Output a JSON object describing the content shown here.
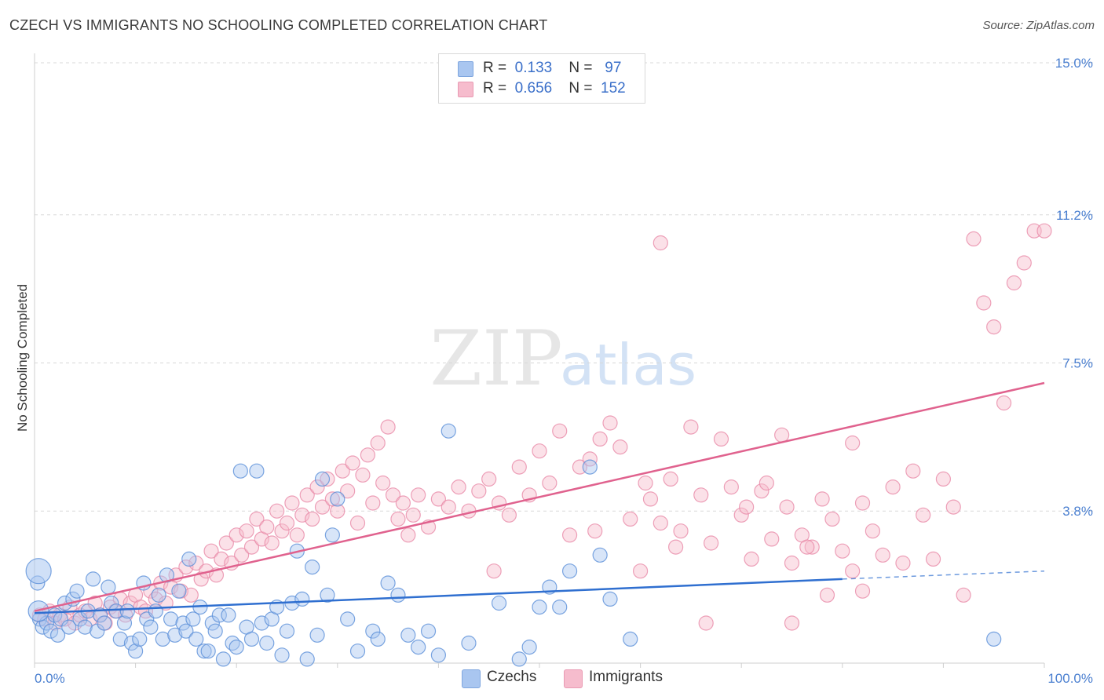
{
  "title": "CZECH VS IMMIGRANTS NO SCHOOLING COMPLETED CORRELATION CHART",
  "source": "Source: ZipAtlas.com",
  "watermark": {
    "zip": "ZIP",
    "atlas": "atlas"
  },
  "colors": {
    "blue": "#5a8fd8",
    "blue_fill": "#a9c6f0",
    "blue_line": "#2f6fd0",
    "pink": "#e88aa8",
    "pink_fill": "#f6bccd",
    "pink_line": "#e0628e",
    "grid": "#d8d8d8",
    "accent_text": "#4a7fd0"
  },
  "legend": {
    "rows": [
      {
        "r_label": "R =",
        "r_value": "0.133",
        "n_label": "N =",
        "n_value": "97",
        "color": "#a9c6f0"
      },
      {
        "r_label": "R =",
        "r_value": "0.656",
        "n_label": "N =",
        "n_value": "152",
        "color": "#f6bccd"
      }
    ]
  },
  "bottom_legend": [
    {
      "label": "Czechs",
      "color": "#a9c6f0"
    },
    {
      "label": "Immigrants",
      "color": "#f6bccd"
    }
  ],
  "chart_data": {
    "type": "scatter",
    "title": "CZECH VS IMMIGRANTS NO SCHOOLING COMPLETED CORRELATION CHART",
    "xlabel": "",
    "ylabel": "No Schooling Completed",
    "xlim": [
      0,
      100
    ],
    "ylim": [
      0,
      15.0
    ],
    "x_tick_labels": [
      "0.0%",
      "100.0%"
    ],
    "y_ticks": [
      3.8,
      7.5,
      11.2,
      15.0
    ],
    "y_tick_labels": [
      "3.8%",
      "7.5%",
      "11.2%",
      "15.0%"
    ],
    "grid": "dashed horizontal at y ticks",
    "legend_placement": "top-center",
    "series": [
      {
        "name": "Czechs",
        "trend": {
          "x0": 0,
          "y0": 1.25,
          "x1": 80,
          "y1": 2.1,
          "dashed_to": [
            100,
            2.3
          ]
        },
        "points": [
          [
            0.3,
            2.0
          ],
          [
            0.5,
            1.1
          ],
          [
            0.8,
            0.9
          ],
          [
            1.2,
            1.0
          ],
          [
            1.6,
            0.8
          ],
          [
            2.0,
            1.2
          ],
          [
            2.3,
            0.7
          ],
          [
            2.6,
            1.1
          ],
          [
            3.0,
            1.5
          ],
          [
            3.4,
            0.9
          ],
          [
            3.8,
            1.6
          ],
          [
            4.2,
            1.8
          ],
          [
            4.5,
            1.1
          ],
          [
            5.0,
            0.9
          ],
          [
            5.3,
            1.3
          ],
          [
            5.8,
            2.1
          ],
          [
            6.2,
            0.8
          ],
          [
            6.5,
            1.2
          ],
          [
            6.9,
            1.0
          ],
          [
            7.3,
            1.9
          ],
          [
            7.6,
            1.5
          ],
          [
            8.1,
            1.3
          ],
          [
            8.5,
            0.6
          ],
          [
            8.9,
            1.0
          ],
          [
            9.2,
            1.3
          ],
          [
            9.6,
            0.5
          ],
          [
            10.0,
            0.3
          ],
          [
            10.4,
            0.6
          ],
          [
            10.8,
            2.0
          ],
          [
            11.1,
            1.1
          ],
          [
            11.5,
            0.9
          ],
          [
            12.0,
            1.3
          ],
          [
            12.3,
            1.7
          ],
          [
            12.7,
            0.6
          ],
          [
            13.1,
            2.2
          ],
          [
            13.5,
            1.1
          ],
          [
            13.9,
            0.7
          ],
          [
            14.3,
            1.8
          ],
          [
            14.7,
            1.0
          ],
          [
            15.0,
            0.8
          ],
          [
            15.3,
            2.6
          ],
          [
            15.7,
            1.1
          ],
          [
            16.0,
            0.6
          ],
          [
            16.4,
            1.4
          ],
          [
            16.8,
            0.3
          ],
          [
            17.2,
            0.3
          ],
          [
            17.6,
            1.0
          ],
          [
            17.9,
            0.8
          ],
          [
            18.3,
            1.2
          ],
          [
            18.7,
            0.1
          ],
          [
            19.2,
            1.2
          ],
          [
            19.6,
            0.5
          ],
          [
            20.0,
            0.4
          ],
          [
            20.4,
            4.8
          ],
          [
            21.0,
            0.9
          ],
          [
            21.5,
            0.6
          ],
          [
            22.0,
            4.8
          ],
          [
            22.5,
            1.0
          ],
          [
            23.0,
            0.5
          ],
          [
            23.5,
            1.1
          ],
          [
            24.0,
            1.4
          ],
          [
            24.5,
            0.2
          ],
          [
            25.0,
            0.8
          ],
          [
            25.5,
            1.5
          ],
          [
            26.0,
            2.8
          ],
          [
            26.5,
            1.6
          ],
          [
            27.0,
            0.1
          ],
          [
            27.5,
            2.4
          ],
          [
            28.0,
            0.7
          ],
          [
            28.5,
            4.6
          ],
          [
            29.0,
            1.7
          ],
          [
            29.5,
            3.2
          ],
          [
            30.0,
            4.1
          ],
          [
            31.0,
            1.1
          ],
          [
            32.0,
            0.3
          ],
          [
            33.5,
            0.8
          ],
          [
            34.0,
            0.6
          ],
          [
            35.0,
            2.0
          ],
          [
            36.0,
            1.7
          ],
          [
            37.0,
            0.7
          ],
          [
            38.0,
            0.4
          ],
          [
            39.0,
            0.8
          ],
          [
            40.0,
            0.2
          ],
          [
            41.0,
            5.8
          ],
          [
            43.0,
            0.5
          ],
          [
            46.0,
            1.5
          ],
          [
            48.0,
            0.1
          ],
          [
            49.0,
            0.4
          ],
          [
            50.0,
            1.4
          ],
          [
            51.0,
            1.9
          ],
          [
            52.0,
            1.4
          ],
          [
            53.0,
            2.3
          ],
          [
            55.0,
            4.9
          ],
          [
            56.0,
            2.7
          ],
          [
            57.0,
            1.6
          ],
          [
            59.0,
            0.6
          ],
          [
            95.0,
            0.6
          ]
        ],
        "big_points": [
          [
            0.4,
            2.3
          ],
          [
            0.4,
            1.3
          ]
        ]
      },
      {
        "name": "Immigrants",
        "trend": {
          "x0": 0,
          "y0": 1.3,
          "x1": 100,
          "y1": 7.0
        },
        "points": [
          [
            0.5,
            1.2
          ],
          [
            1.0,
            1.1
          ],
          [
            1.5,
            1.3
          ],
          [
            2.0,
            1.0
          ],
          [
            2.5,
            1.2
          ],
          [
            3.0,
            1.1
          ],
          [
            3.5,
            1.4
          ],
          [
            4.0,
            1.0
          ],
          [
            4.5,
            1.2
          ],
          [
            5.0,
            1.3
          ],
          [
            5.5,
            1.1
          ],
          [
            6.0,
            1.5
          ],
          [
            6.5,
            1.2
          ],
          [
            7.0,
            1.0
          ],
          [
            7.5,
            1.4
          ],
          [
            8.0,
            1.3
          ],
          [
            8.5,
            1.6
          ],
          [
            9.0,
            1.2
          ],
          [
            9.5,
            1.5
          ],
          [
            10.0,
            1.7
          ],
          [
            10.5,
            1.4
          ],
          [
            11.0,
            1.3
          ],
          [
            11.5,
            1.8
          ],
          [
            12.0,
            1.6
          ],
          [
            12.5,
            2.0
          ],
          [
            13.0,
            1.5
          ],
          [
            13.5,
            1.9
          ],
          [
            14.0,
            2.2
          ],
          [
            14.5,
            1.8
          ],
          [
            15.0,
            2.4
          ],
          [
            15.5,
            1.7
          ],
          [
            16.0,
            2.5
          ],
          [
            16.5,
            2.1
          ],
          [
            17.0,
            2.3
          ],
          [
            17.5,
            2.8
          ],
          [
            18.0,
            2.2
          ],
          [
            18.5,
            2.6
          ],
          [
            19.0,
            3.0
          ],
          [
            19.5,
            2.5
          ],
          [
            20.0,
            3.2
          ],
          [
            20.5,
            2.7
          ],
          [
            21.0,
            3.3
          ],
          [
            21.5,
            2.9
          ],
          [
            22.0,
            3.6
          ],
          [
            22.5,
            3.1
          ],
          [
            23.0,
            3.4
          ],
          [
            23.5,
            3.0
          ],
          [
            24.0,
            3.8
          ],
          [
            24.5,
            3.3
          ],
          [
            25.0,
            3.5
          ],
          [
            25.5,
            4.0
          ],
          [
            26.0,
            3.2
          ],
          [
            26.5,
            3.7
          ],
          [
            27.0,
            4.2
          ],
          [
            27.5,
            3.6
          ],
          [
            28.0,
            4.4
          ],
          [
            28.5,
            3.9
          ],
          [
            29.0,
            4.6
          ],
          [
            29.5,
            4.1
          ],
          [
            30.0,
            3.8
          ],
          [
            30.5,
            4.8
          ],
          [
            31.0,
            4.3
          ],
          [
            31.5,
            5.0
          ],
          [
            32.0,
            3.5
          ],
          [
            32.5,
            4.7
          ],
          [
            33.0,
            5.2
          ],
          [
            33.5,
            4.0
          ],
          [
            34.0,
            5.5
          ],
          [
            34.5,
            4.5
          ],
          [
            35.0,
            5.9
          ],
          [
            35.5,
            4.2
          ],
          [
            36.0,
            3.6
          ],
          [
            36.5,
            4.0
          ],
          [
            37.0,
            3.2
          ],
          [
            37.5,
            3.7
          ],
          [
            38.0,
            4.2
          ],
          [
            39.0,
            3.4
          ],
          [
            40.0,
            4.1
          ],
          [
            41.0,
            3.9
          ],
          [
            42.0,
            4.4
          ],
          [
            43.0,
            3.8
          ],
          [
            44.0,
            4.3
          ],
          [
            45.0,
            4.6
          ],
          [
            46.0,
            4.0
          ],
          [
            47.0,
            3.7
          ],
          [
            48.0,
            4.9
          ],
          [
            49.0,
            4.2
          ],
          [
            50.0,
            5.3
          ],
          [
            51.0,
            4.5
          ],
          [
            52.0,
            5.8
          ],
          [
            53.0,
            3.2
          ],
          [
            54.0,
            4.9
          ],
          [
            55.0,
            5.1
          ],
          [
            56.0,
            5.6
          ],
          [
            57.0,
            6.0
          ],
          [
            58.0,
            5.4
          ],
          [
            59.0,
            3.6
          ],
          [
            60.0,
            2.3
          ],
          [
            61.0,
            4.1
          ],
          [
            62.0,
            3.5
          ],
          [
            63.0,
            4.6
          ],
          [
            64.0,
            3.3
          ],
          [
            65.0,
            5.9
          ],
          [
            66.0,
            4.2
          ],
          [
            67.0,
            3.0
          ],
          [
            68.0,
            5.6
          ],
          [
            69.0,
            4.4
          ],
          [
            70.0,
            3.7
          ],
          [
            71.0,
            2.6
          ],
          [
            72.0,
            4.3
          ],
          [
            73.0,
            3.1
          ],
          [
            74.0,
            5.7
          ],
          [
            75.0,
            2.5
          ],
          [
            76.0,
            3.2
          ],
          [
            77.0,
            2.9
          ],
          [
            78.0,
            4.1
          ],
          [
            79.0,
            3.6
          ],
          [
            80.0,
            2.8
          ],
          [
            81.0,
            5.5
          ],
          [
            82.0,
            4.0
          ],
          [
            83.0,
            3.3
          ],
          [
            84.0,
            2.7
          ],
          [
            85.0,
            4.4
          ],
          [
            86.0,
            2.5
          ],
          [
            87.0,
            4.8
          ],
          [
            88.0,
            3.7
          ],
          [
            89.0,
            2.6
          ],
          [
            90.0,
            4.6
          ],
          [
            91.0,
            3.9
          ],
          [
            92.0,
            1.7
          ],
          [
            93.0,
            10.6
          ],
          [
            94.0,
            9.0
          ],
          [
            95.0,
            8.4
          ],
          [
            96.0,
            6.5
          ],
          [
            97.0,
            9.5
          ],
          [
            98.0,
            10.0
          ],
          [
            99.0,
            10.8
          ],
          [
            100.0,
            10.8
          ],
          [
            62.0,
            10.5
          ],
          [
            75.0,
            1.0
          ],
          [
            81.0,
            2.3
          ],
          [
            82.0,
            1.8
          ],
          [
            60.5,
            4.5
          ],
          [
            63.5,
            2.9
          ],
          [
            66.5,
            1.0
          ],
          [
            70.5,
            3.9
          ],
          [
            72.5,
            4.5
          ],
          [
            74.5,
            3.9
          ],
          [
            76.5,
            2.9
          ],
          [
            78.5,
            1.7
          ],
          [
            45.5,
            2.3
          ],
          [
            55.5,
            3.3
          ]
        ]
      }
    ]
  }
}
